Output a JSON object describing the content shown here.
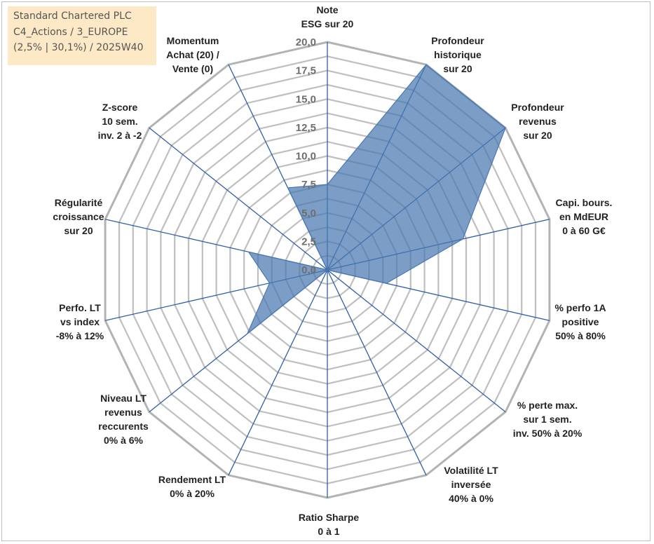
{
  "title_box": {
    "line1": "Standard Chartered PLC",
    "line2": "C4_Actions / 3_EUROPE",
    "line3": "(2,5% | 30,1%) / 2025W40"
  },
  "colors": {
    "fill": "#4a78b0",
    "spoke": "#2f5fa8",
    "grid": "#bfbfbf",
    "outer_ring": "#b3b3b3"
  },
  "chart_data": {
    "type": "radar",
    "r_min": 0,
    "r_max": 20,
    "ticks": [
      "0,0",
      "2,5",
      "5,0",
      "7,5",
      "10,0",
      "12,5",
      "15,0",
      "17,5",
      "20,0"
    ],
    "tick_values": [
      0,
      2.5,
      5,
      7.5,
      10,
      12.5,
      15,
      17.5,
      20
    ],
    "grid_step": 1.25,
    "axes": [
      {
        "label": [
          "Note",
          "ESG sur 20"
        ],
        "value": 7.5
      },
      {
        "label": [
          "Profondeur",
          "historique",
          "sur 20"
        ],
        "value": 20
      },
      {
        "label": [
          "Profondeur",
          "revenus",
          "sur 20"
        ],
        "value": 20
      },
      {
        "label": [
          "Capi. bours.",
          "en MdEUR",
          "0 à 60 G€"
        ],
        "value": 12.2
      },
      {
        "label": [
          "% perfo 1A",
          "positive",
          "50% à 80%"
        ],
        "value": 5.3
      },
      {
        "label": [
          "% perte max.",
          "sur 1 sem.",
          "inv. 50% à 20%"
        ],
        "value": 0
      },
      {
        "label": [
          "Volatilité LT",
          "inversée",
          "40% à 0%"
        ],
        "value": 0
      },
      {
        "label": [
          "Ratio Sharpe",
          "0 à 1"
        ],
        "value": 2.6
      },
      {
        "label": [
          "Rendement LT",
          "0% à 20%"
        ],
        "value": 0
      },
      {
        "label": [
          "Niveau LT",
          "revenus",
          "reccurents",
          "0% à 6%"
        ],
        "value": 9.0
      },
      {
        "label": [
          "Perfo. LT",
          "vs index",
          "-8% à 12%"
        ],
        "value": 5.2
      },
      {
        "label": [
          "Régularité",
          "croissance",
          "sur 20"
        ],
        "value": 7.1
      },
      {
        "label": [
          "Z-score",
          "10 sem.",
          "inv. 2 à -2"
        ],
        "value": 0
      },
      {
        "label": [
          "Momentum",
          "Achat (20) /",
          "Vente (0)"
        ],
        "value": 8.0
      }
    ]
  }
}
